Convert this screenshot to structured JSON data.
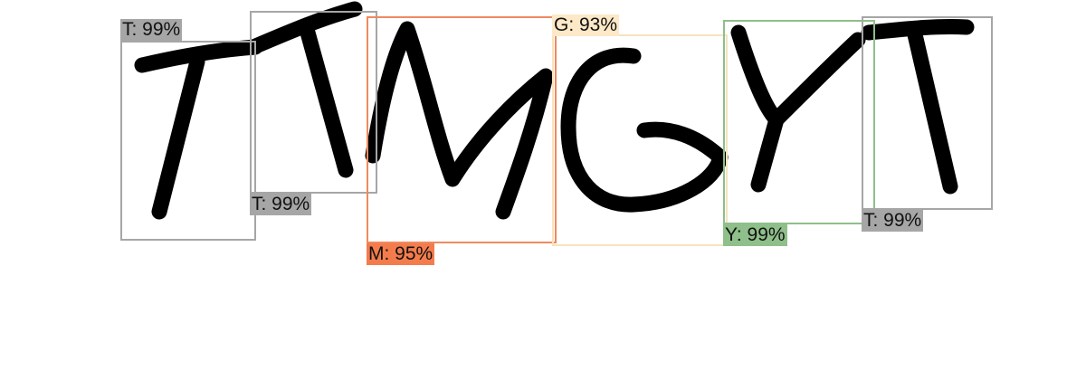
{
  "detections": [
    {
      "label": "T: 99%",
      "color": "#a6a6a6",
      "border": "#a6a6a6"
    },
    {
      "label": "T: 99%",
      "color": "#a6a6a6",
      "border": "#a6a6a6"
    },
    {
      "label": "M: 95%",
      "color": "#f47c4c",
      "border": "#ef8a5f"
    },
    {
      "label": "G: 93%",
      "color": "#fde9c7",
      "border": "#f6e3bf"
    },
    {
      "label": "Y: 99%",
      "color": "#8fbf8a",
      "border": "#8fbf8a"
    },
    {
      "label": "T: 99%",
      "color": "#a6a6a6",
      "border": "#a6a6a6"
    }
  ]
}
